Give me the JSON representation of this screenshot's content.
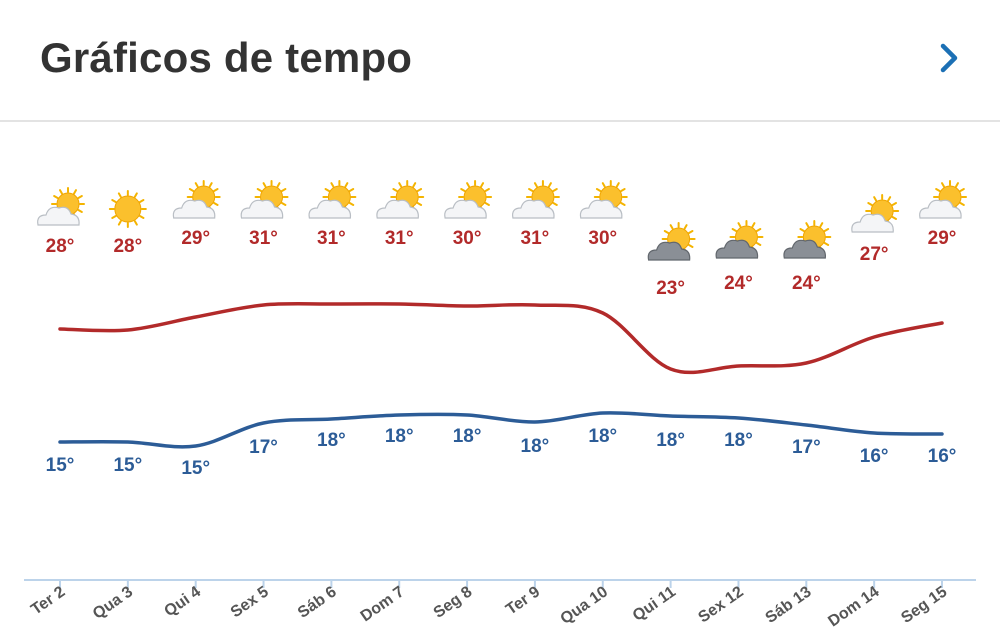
{
  "header": {
    "title": "Gráficos de tempo",
    "next_icon": "chevron-right-icon"
  },
  "colors": {
    "max_line": "#b22a2a",
    "min_line": "#2c5c97",
    "axis": "#bcd3ea",
    "label": "#555555"
  },
  "chart_data": {
    "type": "line",
    "categories": [
      "Ter 2",
      "Qua 3",
      "Qui 4",
      "Sex 5",
      "Sáb 6",
      "Dom 7",
      "Seg 8",
      "Ter 9",
      "Qua 10",
      "Qui 11",
      "Sex 12",
      "Sáb 13",
      "Dom 14",
      "Seg 15"
    ],
    "series": [
      {
        "values": [
          28,
          28,
          29,
          31,
          31,
          31,
          30,
          31,
          30,
          23,
          24,
          24,
          27,
          29
        ],
        "labels": [
          "28°",
          "28°",
          "29°",
          "31°",
          "31°",
          "31°",
          "30°",
          "31°",
          "30°",
          "23°",
          "24°",
          "24°",
          "27°",
          "29°"
        ]
      },
      {
        "values": [
          15,
          15,
          15,
          17,
          18,
          18,
          18,
          18,
          18,
          18,
          18,
          17,
          16,
          16
        ],
        "labels": [
          "15°",
          "15°",
          "15°",
          "17°",
          "18°",
          "18°",
          "18°",
          "18°",
          "18°",
          "18°",
          "18°",
          "17°",
          "16°",
          "16°"
        ]
      }
    ],
    "icons": [
      "sun-cloud-icon",
      "sun-icon",
      "sun-cloud-icon",
      "sun-cloud-icon",
      "sun-cloud-icon",
      "sun-cloud-icon",
      "sun-cloud-icon",
      "sun-cloud-icon",
      "sun-cloud-icon",
      "sun-dark-cloud-icon",
      "sun-dark-cloud-icon",
      "sun-dark-cloud-icon",
      "sun-cloud-icon",
      "sun-cloud-icon"
    ],
    "grid": false,
    "legend": "none"
  }
}
